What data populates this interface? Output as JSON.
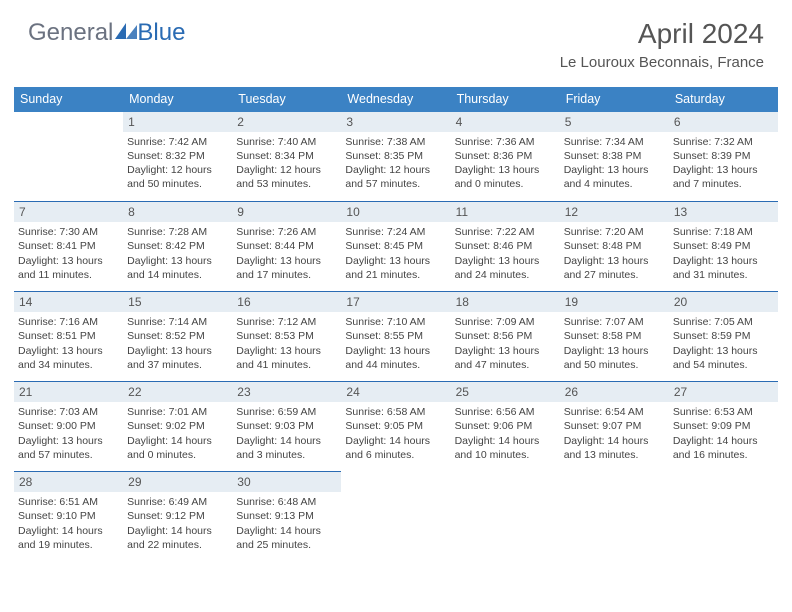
{
  "brand": {
    "part1": "General",
    "part2": "Blue"
  },
  "title": "April 2024",
  "location": "Le Louroux Beconnais, France",
  "colors": {
    "header_bg": "#3b82c4",
    "border": "#2a6bb3",
    "daynum_bg": "#e6edf3",
    "text": "#444444",
    "title_text": "#555555"
  },
  "weekdays": [
    "Sunday",
    "Monday",
    "Tuesday",
    "Wednesday",
    "Thursday",
    "Friday",
    "Saturday"
  ],
  "cells": [
    {
      "n": "",
      "empty": true
    },
    {
      "n": "1",
      "sr": "7:42 AM",
      "ss": "8:32 PM",
      "dl": "12 hours and 50 minutes."
    },
    {
      "n": "2",
      "sr": "7:40 AM",
      "ss": "8:34 PM",
      "dl": "12 hours and 53 minutes."
    },
    {
      "n": "3",
      "sr": "7:38 AM",
      "ss": "8:35 PM",
      "dl": "12 hours and 57 minutes."
    },
    {
      "n": "4",
      "sr": "7:36 AM",
      "ss": "8:36 PM",
      "dl": "13 hours and 0 minutes."
    },
    {
      "n": "5",
      "sr": "7:34 AM",
      "ss": "8:38 PM",
      "dl": "13 hours and 4 minutes."
    },
    {
      "n": "6",
      "sr": "7:32 AM",
      "ss": "8:39 PM",
      "dl": "13 hours and 7 minutes."
    },
    {
      "n": "7",
      "sr": "7:30 AM",
      "ss": "8:41 PM",
      "dl": "13 hours and 11 minutes."
    },
    {
      "n": "8",
      "sr": "7:28 AM",
      "ss": "8:42 PM",
      "dl": "13 hours and 14 minutes."
    },
    {
      "n": "9",
      "sr": "7:26 AM",
      "ss": "8:44 PM",
      "dl": "13 hours and 17 minutes."
    },
    {
      "n": "10",
      "sr": "7:24 AM",
      "ss": "8:45 PM",
      "dl": "13 hours and 21 minutes."
    },
    {
      "n": "11",
      "sr": "7:22 AM",
      "ss": "8:46 PM",
      "dl": "13 hours and 24 minutes."
    },
    {
      "n": "12",
      "sr": "7:20 AM",
      "ss": "8:48 PM",
      "dl": "13 hours and 27 minutes."
    },
    {
      "n": "13",
      "sr": "7:18 AM",
      "ss": "8:49 PM",
      "dl": "13 hours and 31 minutes."
    },
    {
      "n": "14",
      "sr": "7:16 AM",
      "ss": "8:51 PM",
      "dl": "13 hours and 34 minutes."
    },
    {
      "n": "15",
      "sr": "7:14 AM",
      "ss": "8:52 PM",
      "dl": "13 hours and 37 minutes."
    },
    {
      "n": "16",
      "sr": "7:12 AM",
      "ss": "8:53 PM",
      "dl": "13 hours and 41 minutes."
    },
    {
      "n": "17",
      "sr": "7:10 AM",
      "ss": "8:55 PM",
      "dl": "13 hours and 44 minutes."
    },
    {
      "n": "18",
      "sr": "7:09 AM",
      "ss": "8:56 PM",
      "dl": "13 hours and 47 minutes."
    },
    {
      "n": "19",
      "sr": "7:07 AM",
      "ss": "8:58 PM",
      "dl": "13 hours and 50 minutes."
    },
    {
      "n": "20",
      "sr": "7:05 AM",
      "ss": "8:59 PM",
      "dl": "13 hours and 54 minutes."
    },
    {
      "n": "21",
      "sr": "7:03 AM",
      "ss": "9:00 PM",
      "dl": "13 hours and 57 minutes."
    },
    {
      "n": "22",
      "sr": "7:01 AM",
      "ss": "9:02 PM",
      "dl": "14 hours and 0 minutes."
    },
    {
      "n": "23",
      "sr": "6:59 AM",
      "ss": "9:03 PM",
      "dl": "14 hours and 3 minutes."
    },
    {
      "n": "24",
      "sr": "6:58 AM",
      "ss": "9:05 PM",
      "dl": "14 hours and 6 minutes."
    },
    {
      "n": "25",
      "sr": "6:56 AM",
      "ss": "9:06 PM",
      "dl": "14 hours and 10 minutes."
    },
    {
      "n": "26",
      "sr": "6:54 AM",
      "ss": "9:07 PM",
      "dl": "14 hours and 13 minutes."
    },
    {
      "n": "27",
      "sr": "6:53 AM",
      "ss": "9:09 PM",
      "dl": "14 hours and 16 minutes."
    },
    {
      "n": "28",
      "sr": "6:51 AM",
      "ss": "9:10 PM",
      "dl": "14 hours and 19 minutes."
    },
    {
      "n": "29",
      "sr": "6:49 AM",
      "ss": "9:12 PM",
      "dl": "14 hours and 22 minutes."
    },
    {
      "n": "30",
      "sr": "6:48 AM",
      "ss": "9:13 PM",
      "dl": "14 hours and 25 minutes."
    },
    {
      "n": "",
      "empty": true
    },
    {
      "n": "",
      "empty": true
    },
    {
      "n": "",
      "empty": true
    },
    {
      "n": "",
      "empty": true
    }
  ],
  "labels": {
    "sunrise": "Sunrise: ",
    "sunset": "Sunset: ",
    "daylight": "Daylight: "
  }
}
